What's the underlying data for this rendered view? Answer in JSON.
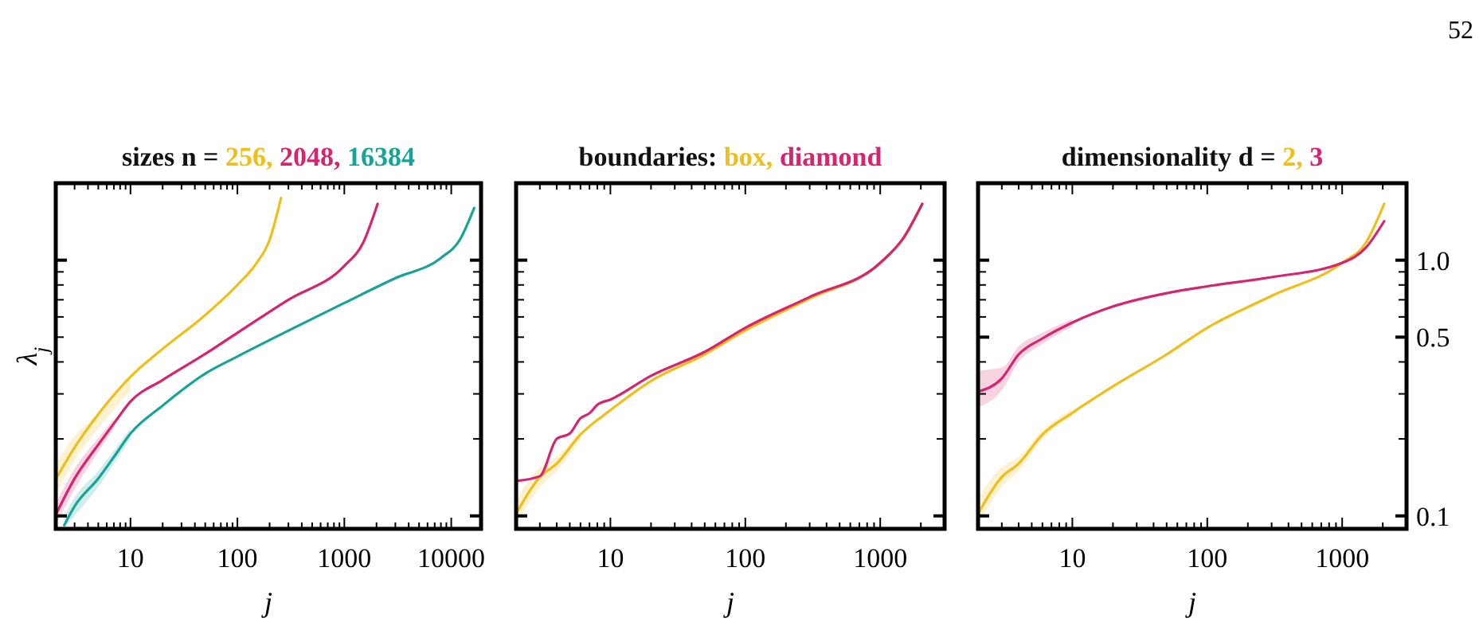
{
  "chart_data": [
    {
      "type": "line",
      "title": "sizes n =",
      "legend": "top",
      "xlabel": "j",
      "ylabel": "λ$_{j}$",
      "log": "xy",
      "tick_labels": "x",
      "xlim": [
        2,
        19000
      ],
      "ylim": [
        0.089,
        2.0
      ],
      "xticks": [
        {
          "value": 2,
          "label": null
        },
        {
          "value": 3,
          "label": null
        },
        {
          "value": 4,
          "label": null
        },
        {
          "value": 5,
          "label": null
        },
        {
          "value": 6,
          "label": null
        },
        {
          "value": 7,
          "label": null
        },
        {
          "value": 8,
          "label": null
        },
        {
          "value": 9,
          "label": null
        },
        10,
        {
          "value": 20,
          "label": null
        },
        {
          "value": 30,
          "label": null
        },
        {
          "value": 40,
          "label": null
        },
        {
          "value": 50,
          "label": null
        },
        {
          "value": 60,
          "label": null
        },
        {
          "value": 70,
          "label": null
        },
        {
          "value": 80,
          "label": null
        },
        {
          "value": 90,
          "label": null
        },
        100,
        {
          "value": 200,
          "label": null
        },
        {
          "value": 300,
          "label": null
        },
        {
          "value": 400,
          "label": null
        },
        {
          "value": 500,
          "label": null
        },
        {
          "value": 600,
          "label": null
        },
        {
          "value": 700,
          "label": null
        },
        {
          "value": 800,
          "label": null
        },
        {
          "value": 900,
          "label": null
        },
        1000,
        {
          "value": 2000,
          "label": null
        },
        {
          "value": 3000,
          "label": null
        },
        {
          "value": 4000,
          "label": null
        },
        {
          "value": 5000,
          "label": null
        },
        {
          "value": 6000,
          "label": null
        },
        {
          "value": 7000,
          "label": null
        },
        {
          "value": 8000,
          "label": null
        },
        {
          "value": 9000,
          "label": null
        },
        10000
      ],
      "yticks": [
        {
          "value": 0.1,
          "label": null
        },
        {
          "value": 0.2,
          "label": null
        },
        {
          "value": 0.3,
          "label": null
        },
        {
          "value": 0.4,
          "label": null
        },
        {
          "value": 0.5,
          "label": null
        },
        {
          "value": 0.6,
          "label": null
        },
        {
          "value": 0.7,
          "label": null
        },
        {
          "value": 0.8,
          "label": null
        },
        {
          "value": 0.9,
          "label": null
        },
        {
          "value": 1,
          "label": null
        }
      ],
      "series": [
        {
          "name": "256,",
          "color": "#f0be18",
          "x": [
            2,
            3,
            5,
            10,
            20,
            50,
            100,
            150,
            200,
            256
          ],
          "values": [
            0.139,
            0.185,
            0.25,
            0.35,
            0.45,
            0.61,
            0.8,
            0.97,
            1.2,
            1.75
          ],
          "lower": [
            0.12,
            0.165,
            0.22,
            0.31,
            null,
            null,
            null,
            null,
            null,
            null
          ],
          "upper": [
            0.16,
            0.205,
            0.25,
            0.345,
            null,
            null,
            null,
            null,
            null,
            null
          ]
        },
        {
          "name": "2048,",
          "color": "#d6246e",
          "x": [
            2,
            3,
            5,
            7,
            10,
            20,
            50,
            100,
            300,
            1000,
            1500,
            2048
          ],
          "values": [
            0.101,
            0.14,
            0.19,
            0.23,
            0.28,
            0.34,
            0.43,
            0.52,
            0.7,
            0.95,
            1.17,
            1.66
          ],
          "lower": [
            0.092,
            0.127,
            0.178,
            0.22,
            null,
            null,
            null,
            null,
            null,
            null,
            null,
            null
          ],
          "upper": [
            0.112,
            0.153,
            0.202,
            0.24,
            null,
            null,
            null,
            null,
            null,
            null,
            null,
            null
          ]
        },
        {
          "name": "16384",
          "color": "#17a398",
          "x": [
            2.4,
            3,
            5,
            7,
            10,
            20,
            50,
            100,
            300,
            1000,
            3000,
            8000,
            12000,
            16384
          ],
          "values": [
            0.092,
            0.109,
            0.14,
            0.17,
            0.21,
            0.27,
            0.36,
            0.42,
            0.53,
            0.68,
            0.85,
            1.02,
            1.2,
            1.6
          ],
          "lower": [
            0.089,
            0.1,
            0.13,
            0.16,
            0.2,
            null,
            null,
            null,
            null,
            null,
            null,
            null,
            null,
            null
          ],
          "upper": [
            0.1,
            0.118,
            0.15,
            0.18,
            0.22,
            null,
            null,
            null,
            null,
            null,
            null,
            null,
            null,
            null
          ]
        }
      ]
    },
    {
      "type": "line",
      "title": "boundaries:",
      "legend": "top",
      "xlabel": "j",
      "log": "xy",
      "tick_labels": "x",
      "xlim": [
        2,
        3000
      ],
      "ylim": [
        0.089,
        2.0
      ],
      "xticks": [
        {
          "value": 2,
          "label": null
        },
        {
          "value": 3,
          "label": null
        },
        {
          "value": 4,
          "label": null
        },
        {
          "value": 5,
          "label": null
        },
        {
          "value": 6,
          "label": null
        },
        {
          "value": 7,
          "label": null
        },
        {
          "value": 8,
          "label": null
        },
        {
          "value": 9,
          "label": null
        },
        10,
        {
          "value": 20,
          "label": null
        },
        {
          "value": 30,
          "label": null
        },
        {
          "value": 40,
          "label": null
        },
        {
          "value": 50,
          "label": null
        },
        {
          "value": 60,
          "label": null
        },
        {
          "value": 70,
          "label": null
        },
        {
          "value": 80,
          "label": null
        },
        {
          "value": 90,
          "label": null
        },
        100,
        {
          "value": 200,
          "label": null
        },
        {
          "value": 300,
          "label": null
        },
        {
          "value": 400,
          "label": null
        },
        {
          "value": 500,
          "label": null
        },
        {
          "value": 600,
          "label": null
        },
        {
          "value": 700,
          "label": null
        },
        {
          "value": 800,
          "label": null
        },
        {
          "value": 900,
          "label": null
        },
        1000,
        {
          "value": 2000,
          "label": null
        },
        {
          "value": 3000,
          "label": null
        }
      ],
      "yticks": [
        {
          "value": 0.1,
          "label": null
        },
        {
          "value": 0.2,
          "label": null
        },
        {
          "value": 0.3,
          "label": null
        },
        {
          "value": 0.4,
          "label": null
        },
        {
          "value": 0.5,
          "label": null
        },
        {
          "value": 0.6,
          "label": null
        },
        {
          "value": 0.7,
          "label": null
        },
        {
          "value": 0.8,
          "label": null
        },
        {
          "value": 0.9,
          "label": null
        },
        {
          "value": 1,
          "label": null
        }
      ],
      "series": [
        {
          "name": "box,",
          "color": "#f0be18",
          "x": [
            2,
            3,
            4,
            6,
            10,
            20,
            50,
            100,
            300,
            1000,
            1500,
            2048
          ],
          "values": [
            0.102,
            0.142,
            0.16,
            0.208,
            0.259,
            0.337,
            0.428,
            0.531,
            0.708,
            0.976,
            1.23,
            1.66
          ],
          "lower": [
            0.092,
            0.13,
            0.15,
            0.2,
            null,
            null,
            null,
            null,
            null,
            null,
            null,
            null
          ],
          "upper": [
            0.115,
            0.155,
            0.17,
            0.216,
            null,
            null,
            null,
            null,
            null,
            null,
            null,
            null
          ]
        },
        {
          "name": "diamond",
          "color": "#d6246e",
          "x": [
            2,
            3,
            4,
            5,
            6,
            7,
            8,
            10,
            20,
            50,
            100,
            300,
            1000,
            1500,
            2048
          ],
          "values": [
            0.137,
            0.143,
            0.2,
            0.21,
            0.241,
            0.252,
            0.272,
            0.285,
            0.353,
            0.438,
            0.544,
            0.718,
            0.976,
            1.23,
            1.66
          ]
        }
      ]
    },
    {
      "type": "line",
      "title": "dimensionality d =",
      "legend": "top",
      "xlabel": "j",
      "log": "xy",
      "annotations": [
        "52"
      ],
      "xlim": [
        2,
        3000
      ],
      "ylim": [
        0.089,
        2.0
      ],
      "xticks": [
        {
          "value": 2,
          "label": null
        },
        {
          "value": 3,
          "label": null
        },
        {
          "value": 4,
          "label": null
        },
        {
          "value": 5,
          "label": null
        },
        {
          "value": 6,
          "label": null
        },
        {
          "value": 7,
          "label": null
        },
        {
          "value": 8,
          "label": null
        },
        {
          "value": 9,
          "label": null
        },
        10,
        {
          "value": 20,
          "label": null
        },
        {
          "value": 30,
          "label": null
        },
        {
          "value": 40,
          "label": null
        },
        {
          "value": 50,
          "label": null
        },
        {
          "value": 60,
          "label": null
        },
        {
          "value": 70,
          "label": null
        },
        {
          "value": 80,
          "label": null
        },
        {
          "value": 90,
          "label": null
        },
        100,
        {
          "value": 200,
          "label": null
        },
        {
          "value": 300,
          "label": null
        },
        {
          "value": 400,
          "label": null
        },
        {
          "value": 500,
          "label": null
        },
        {
          "value": 600,
          "label": null
        },
        {
          "value": 700,
          "label": null
        },
        {
          "value": 800,
          "label": null
        },
        {
          "value": 900,
          "label": null
        },
        1000,
        {
          "value": 2000,
          "label": null
        },
        {
          "value": 3000,
          "label": null
        }
      ],
      "yticks": [
        {
          "value": 0.1,
          "label": "0.1"
        },
        {
          "value": 0.2,
          "label": null
        },
        {
          "value": 0.3,
          "label": null
        },
        {
          "value": 0.4,
          "label": null
        },
        {
          "value": 0.5,
          "label": "0.5"
        },
        {
          "value": 0.6,
          "label": null
        },
        {
          "value": 0.7,
          "label": null
        },
        {
          "value": 0.8,
          "label": null
        },
        {
          "value": 0.9,
          "label": null
        },
        {
          "value": 1,
          "label": "1.0"
        }
      ],
      "series": [
        {
          "name": "2,",
          "color": "#f0be18",
          "x": [
            2,
            3,
            4,
            6,
            10,
            20,
            50,
            100,
            300,
            1000,
            1500,
            2048
          ],
          "values": [
            0.102,
            0.142,
            0.16,
            0.208,
            0.253,
            0.321,
            0.428,
            0.544,
            0.725,
            0.976,
            1.17,
            1.66
          ],
          "lower": [
            0.092,
            0.13,
            0.15,
            0.2,
            0.245,
            null,
            null,
            null,
            null,
            null,
            null,
            null
          ],
          "upper": [
            0.118,
            0.155,
            0.17,
            0.216,
            0.262,
            null,
            null,
            null,
            null,
            null,
            null,
            null
          ]
        },
        {
          "name": "3",
          "color": "#d6246e",
          "x": [
            2,
            3,
            4,
            6,
            10,
            20,
            50,
            100,
            300,
            1000,
            1500,
            2048
          ],
          "values": [
            0.306,
            0.345,
            0.428,
            0.494,
            0.57,
            0.659,
            0.743,
            0.79,
            0.858,
            0.976,
            1.12,
            1.42
          ],
          "lower": [
            0.265,
            0.31,
            0.4,
            0.47,
            0.55,
            null,
            null,
            null,
            null,
            null,
            null,
            null
          ],
          "upper": [
            0.37,
            0.38,
            0.46,
            0.52,
            0.59,
            null,
            null,
            null,
            null,
            null,
            null,
            null
          ]
        }
      ]
    }
  ]
}
